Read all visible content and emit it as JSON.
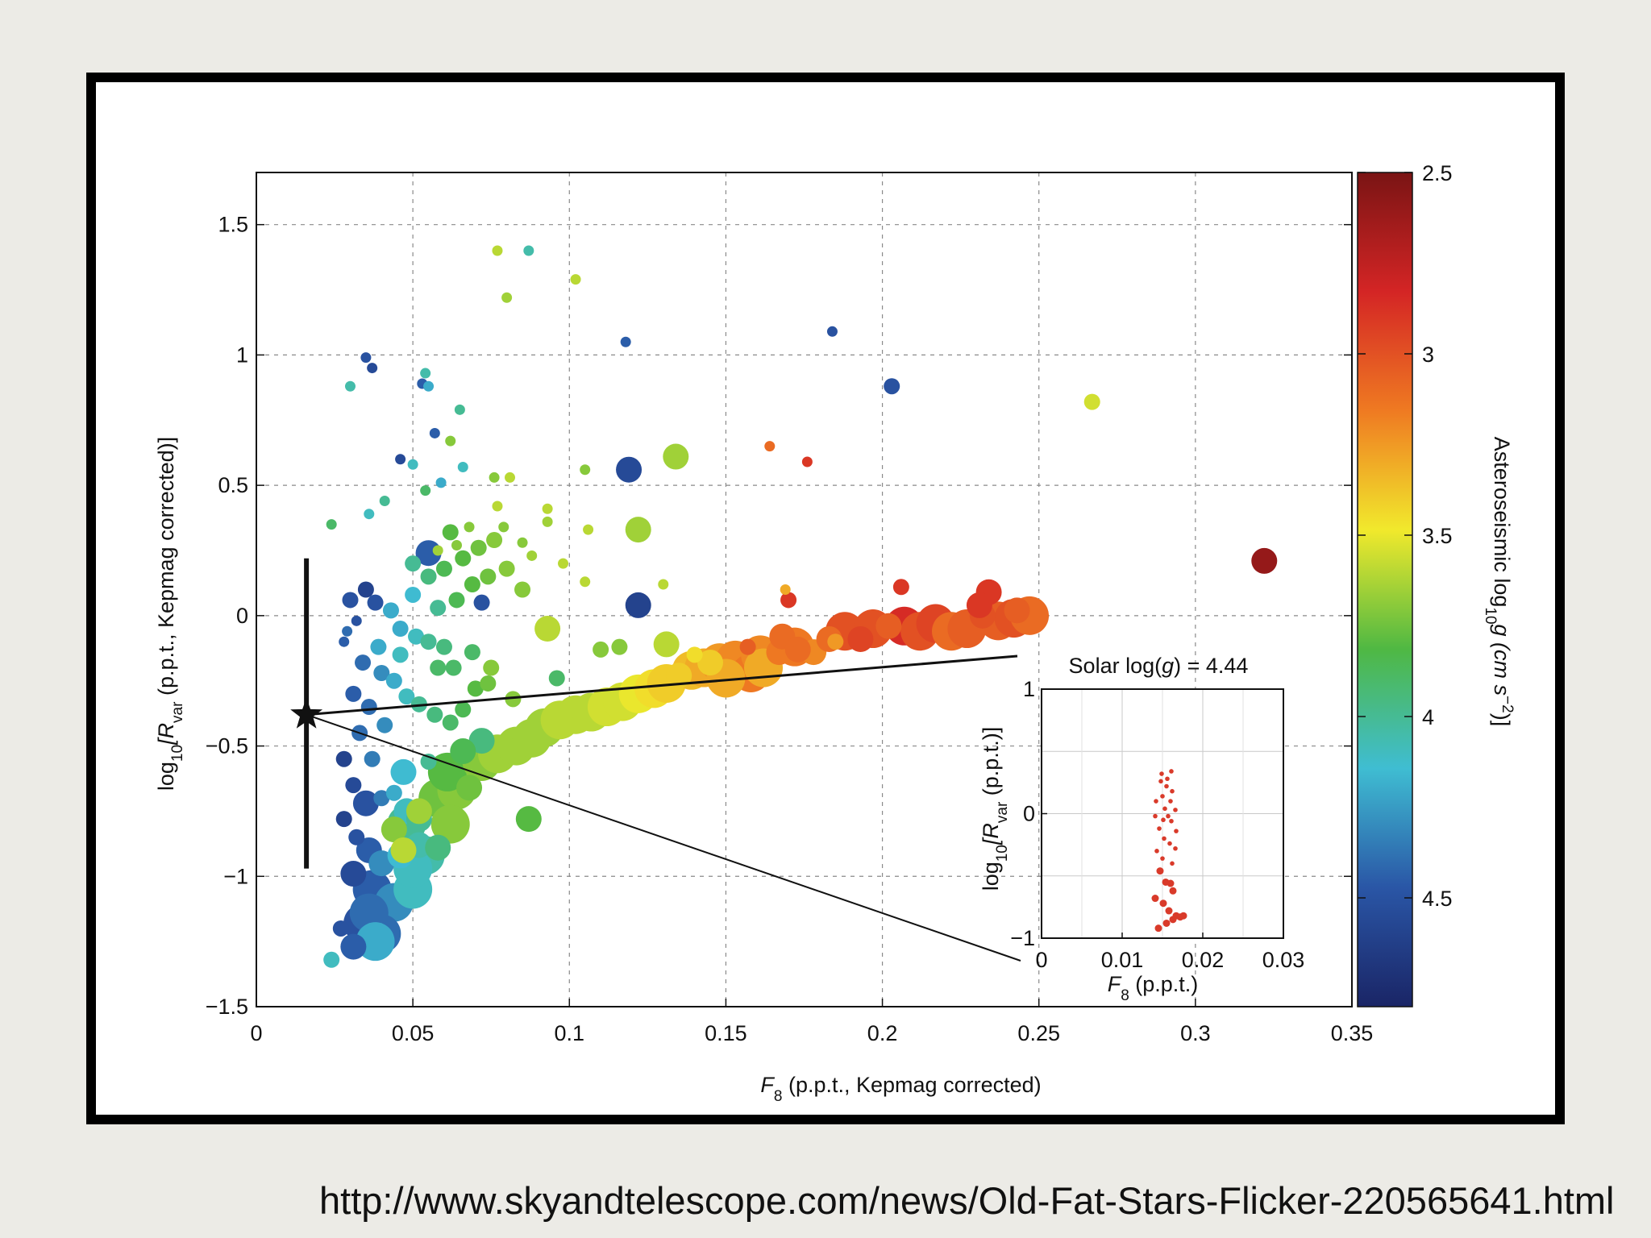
{
  "source": {
    "url": "http://www.skyandtelescope.com/news/Old-Fat-Stars-Flicker-220565641.html"
  },
  "chart_data": {
    "type": "scatter",
    "xlabel": {
      "var": "F",
      "sub": "8",
      "rest": " (p.p.t., Kepmag corrected)"
    },
    "ylabel": {
      "pre": "log",
      "sub1": "10",
      "var": "[R",
      "sub2": "var",
      "rest": "  (p.p.t., Kepmag corrected)]"
    },
    "xlim": [
      0,
      0.35
    ],
    "ylim": [
      -1.5,
      1.7
    ],
    "xticks": [
      "0",
      "0.05",
      "0.1",
      "0.15",
      "0.2",
      "0.25",
      "0.3",
      "0.35"
    ],
    "xtick_values": [
      0,
      0.05,
      0.1,
      0.15,
      0.2,
      0.25,
      0.3,
      0.35
    ],
    "yticks": [
      "−1.5",
      "−1",
      "−0.5",
      "0",
      "0.5",
      "1",
      "1.5"
    ],
    "ytick_values": [
      -1.5,
      -1,
      -0.5,
      0,
      0.5,
      1,
      1.5
    ],
    "grid": true,
    "colorbar": {
      "label": "Asteroseismic  log",
      "label_sub": "10",
      "label_rest": "g  (cm s",
      "label_sup": "−2",
      "label_end": ")]",
      "range": [
        2.5,
        4.8
      ],
      "ticks": [
        "2.5",
        "3",
        "3.5",
        "4",
        "4.5"
      ],
      "tick_values": [
        2.5,
        3,
        3.5,
        4,
        4.5
      ],
      "colors": [
        "#7a1414",
        "#d42525",
        "#ef7a22",
        "#f1e92c",
        "#4fb843",
        "#3fbdd2",
        "#2a56a6",
        "#1a2566"
      ]
    },
    "sun_marker": {
      "x": 0.016,
      "y": -0.38,
      "yerr_low": -0.97,
      "yerr_high": 0.22
    },
    "points_columns": [
      "x",
      "y",
      "logg",
      "size"
    ],
    "points": [
      [
        0.077,
        1.4,
        3.6,
        1
      ],
      [
        0.087,
        1.4,
        4.05,
        1
      ],
      [
        0.08,
        1.22,
        3.65,
        1
      ],
      [
        0.102,
        1.29,
        3.6,
        1
      ],
      [
        0.035,
        0.99,
        4.5,
        1
      ],
      [
        0.037,
        0.95,
        4.55,
        1
      ],
      [
        0.03,
        0.88,
        4.05,
        1
      ],
      [
        0.054,
        0.93,
        4.05,
        1
      ],
      [
        0.053,
        0.89,
        4.45,
        1
      ],
      [
        0.055,
        0.88,
        4.2,
        1
      ],
      [
        0.065,
        0.79,
        4.0,
        1
      ],
      [
        0.057,
        0.7,
        4.45,
        1
      ],
      [
        0.062,
        0.67,
        3.7,
        1
      ],
      [
        0.046,
        0.6,
        4.55,
        1
      ],
      [
        0.05,
        0.58,
        4.1,
        1
      ],
      [
        0.066,
        0.57,
        4.1,
        1
      ],
      [
        0.059,
        0.51,
        4.2,
        1
      ],
      [
        0.041,
        0.44,
        4.0,
        1
      ],
      [
        0.036,
        0.39,
        4.1,
        1
      ],
      [
        0.024,
        0.35,
        3.9,
        1
      ],
      [
        0.054,
        0.48,
        3.9,
        1
      ],
      [
        0.076,
        0.53,
        3.7,
        1
      ],
      [
        0.081,
        0.53,
        3.6,
        1
      ],
      [
        0.105,
        0.56,
        3.7,
        1
      ],
      [
        0.077,
        0.42,
        3.6,
        1
      ],
      [
        0.093,
        0.41,
        3.6,
        1
      ],
      [
        0.093,
        0.36,
        3.65,
        1
      ],
      [
        0.106,
        0.33,
        3.6,
        1
      ],
      [
        0.079,
        0.34,
        3.7,
        1
      ],
      [
        0.068,
        0.34,
        3.7,
        1
      ],
      [
        0.064,
        0.27,
        3.7,
        1
      ],
      [
        0.058,
        0.25,
        3.65,
        1
      ],
      [
        0.088,
        0.23,
        3.65,
        1
      ],
      [
        0.085,
        0.28,
        3.7,
        1
      ],
      [
        0.098,
        0.2,
        3.6,
        1
      ],
      [
        0.105,
        0.13,
        3.6,
        1
      ],
      [
        0.13,
        0.12,
        3.6,
        1
      ],
      [
        0.118,
        1.05,
        4.45,
        1
      ],
      [
        0.184,
        1.09,
        4.5,
        1
      ],
      [
        0.203,
        0.88,
        4.5,
        2
      ],
      [
        0.119,
        0.56,
        4.55,
        3
      ],
      [
        0.134,
        0.61,
        3.65,
        3
      ],
      [
        0.122,
        0.33,
        3.65,
        3
      ],
      [
        0.055,
        0.24,
        4.45,
        3
      ],
      [
        0.164,
        0.65,
        3.1,
        1
      ],
      [
        0.176,
        0.59,
        2.9,
        1
      ],
      [
        0.267,
        0.82,
        3.55,
        2
      ],
      [
        0.322,
        0.21,
        2.6,
        3
      ],
      [
        0.206,
        0.11,
        2.9,
        2
      ],
      [
        0.234,
        0.09,
        2.9,
        3
      ],
      [
        0.17,
        0.06,
        2.9,
        2
      ],
      [
        0.169,
        0.1,
        3.3,
        1
      ],
      [
        0.122,
        0.04,
        4.6,
        3
      ],
      [
        0.072,
        0.05,
        4.5,
        2
      ],
      [
        0.087,
        -0.78,
        3.8,
        3
      ],
      [
        0.11,
        -0.13,
        3.7,
        2
      ],
      [
        0.116,
        -0.12,
        3.7,
        2
      ],
      [
        0.131,
        -0.11,
        3.6,
        3
      ],
      [
        0.096,
        -0.24,
        3.9,
        2
      ],
      [
        0.082,
        -0.32,
        3.7,
        2
      ],
      [
        0.075,
        -0.2,
        3.7,
        2
      ],
      [
        0.069,
        -0.14,
        3.9,
        2
      ],
      [
        0.072,
        -0.48,
        3.95,
        3
      ],
      [
        0.093,
        -0.05,
        3.6,
        3
      ],
      [
        0.035,
        0.1,
        4.6,
        2
      ],
      [
        0.038,
        0.05,
        4.5,
        2
      ],
      [
        0.043,
        0.02,
        4.2,
        2
      ],
      [
        0.046,
        -0.05,
        4.2,
        2
      ],
      [
        0.051,
        -0.08,
        4.1,
        2
      ],
      [
        0.055,
        -0.1,
        4.0,
        2
      ],
      [
        0.06,
        -0.12,
        3.95,
        2
      ],
      [
        0.063,
        -0.2,
        3.9,
        2
      ],
      [
        0.032,
        -0.02,
        4.5,
        1
      ],
      [
        0.028,
        -0.1,
        4.45,
        1
      ],
      [
        0.034,
        -0.18,
        4.4,
        2
      ],
      [
        0.04,
        -0.22,
        4.3,
        2
      ],
      [
        0.044,
        -0.25,
        4.2,
        2
      ],
      [
        0.031,
        -0.3,
        4.45,
        2
      ],
      [
        0.036,
        -0.35,
        4.4,
        2
      ],
      [
        0.041,
        -0.42,
        4.3,
        2
      ],
      [
        0.048,
        -0.31,
        4.1,
        2
      ],
      [
        0.052,
        -0.34,
        4.0,
        2
      ],
      [
        0.057,
        -0.38,
        3.95,
        2
      ],
      [
        0.062,
        -0.41,
        3.9,
        2
      ],
      [
        0.066,
        -0.36,
        3.85,
        2
      ],
      [
        0.07,
        -0.28,
        3.8,
        2
      ],
      [
        0.074,
        -0.26,
        3.75,
        2
      ],
      [
        0.058,
        -0.2,
        3.9,
        2
      ],
      [
        0.046,
        -0.15,
        4.1,
        2
      ],
      [
        0.039,
        -0.12,
        4.2,
        2
      ],
      [
        0.05,
        0.08,
        4.15,
        2
      ],
      [
        0.058,
        0.03,
        4.0,
        2
      ],
      [
        0.064,
        0.06,
        3.85,
        2
      ],
      [
        0.069,
        0.12,
        3.8,
        2
      ],
      [
        0.074,
        0.15,
        3.75,
        2
      ],
      [
        0.08,
        0.18,
        3.7,
        2
      ],
      [
        0.085,
        0.1,
        3.7,
        2
      ],
      [
        0.06,
        0.18,
        3.85,
        2
      ],
      [
        0.066,
        0.22,
        3.8,
        2
      ],
      [
        0.071,
        0.26,
        3.75,
        2
      ],
      [
        0.076,
        0.29,
        3.7,
        2
      ],
      [
        0.062,
        0.32,
        3.8,
        2
      ],
      [
        0.055,
        0.15,
        3.95,
        2
      ],
      [
        0.05,
        0.2,
        4.0,
        2
      ],
      [
        0.03,
        0.06,
        4.5,
        2
      ],
      [
        0.029,
        -0.06,
        4.4,
        1
      ],
      [
        0.033,
        -0.45,
        4.4,
        2
      ],
      [
        0.037,
        -0.55,
        4.35,
        2
      ],
      [
        0.028,
        -0.55,
        4.6,
        2
      ],
      [
        0.031,
        -0.65,
        4.55,
        2
      ],
      [
        0.035,
        -0.72,
        4.5,
        3
      ],
      [
        0.04,
        -0.7,
        4.35,
        2
      ],
      [
        0.044,
        -0.68,
        4.2,
        2
      ],
      [
        0.048,
        -0.75,
        4.1,
        3
      ],
      [
        0.052,
        -0.78,
        4.0,
        3
      ],
      [
        0.047,
        -0.6,
        4.15,
        3
      ],
      [
        0.055,
        -0.56,
        4.0,
        2
      ],
      [
        0.028,
        -0.78,
        4.6,
        2
      ],
      [
        0.032,
        -0.85,
        4.5,
        2
      ],
      [
        0.036,
        -0.9,
        4.45,
        3
      ],
      [
        0.04,
        -0.95,
        4.3,
        3
      ],
      [
        0.046,
        -0.92,
        4.15,
        3
      ],
      [
        0.052,
        -0.88,
        4.05,
        3
      ],
      [
        0.031,
        -0.99,
        4.55,
        3
      ],
      [
        0.037,
        -1.05,
        4.45,
        4
      ],
      [
        0.044,
        -1.1,
        4.3,
        4
      ],
      [
        0.05,
        -1.05,
        4.1,
        4
      ],
      [
        0.034,
        -1.18,
        4.5,
        4
      ],
      [
        0.04,
        -1.22,
        4.4,
        4
      ],
      [
        0.036,
        -1.14,
        4.4,
        4
      ],
      [
        0.031,
        -1.27,
        4.45,
        3
      ],
      [
        0.024,
        -1.32,
        4.1,
        2
      ],
      [
        0.027,
        -1.2,
        4.5,
        2
      ],
      [
        0.038,
        -1.25,
        4.2,
        4
      ],
      [
        0.048,
        -0.8,
        4.0,
        4
      ],
      [
        0.044,
        -0.82,
        3.7,
        3
      ],
      [
        0.047,
        -0.9,
        3.6,
        3
      ],
      [
        0.052,
        -0.75,
        3.65,
        3
      ],
      [
        0.058,
        -0.7,
        3.75,
        4
      ],
      [
        0.064,
        -0.67,
        3.7,
        4
      ],
      [
        0.061,
        -0.6,
        3.8,
        4
      ],
      [
        0.066,
        -0.52,
        3.85,
        3
      ],
      [
        0.068,
        -0.66,
        3.75,
        3
      ],
      [
        0.062,
        -0.8,
        3.7,
        4
      ],
      [
        0.058,
        -0.89,
        3.95,
        3
      ],
      [
        0.054,
        -0.92,
        4.05,
        4
      ],
      [
        0.05,
        -0.97,
        4.1,
        4
      ],
      [
        0.072,
        -0.56,
        3.7,
        4
      ],
      [
        0.077,
        -0.53,
        3.65,
        4
      ],
      [
        0.083,
        -0.5,
        3.65,
        4
      ],
      [
        0.088,
        -0.47,
        3.65,
        4
      ],
      [
        0.092,
        -0.43,
        3.65,
        4
      ],
      [
        0.097,
        -0.4,
        3.6,
        4
      ],
      [
        0.102,
        -0.38,
        3.6,
        4
      ],
      [
        0.107,
        -0.37,
        3.6,
        4
      ],
      [
        0.112,
        -0.35,
        3.55,
        4
      ],
      [
        0.117,
        -0.33,
        3.55,
        4
      ],
      [
        0.122,
        -0.3,
        3.5,
        4
      ],
      [
        0.127,
        -0.28,
        3.45,
        4
      ],
      [
        0.131,
        -0.26,
        3.4,
        4
      ],
      [
        0.135,
        -0.23,
        3.4,
        3
      ],
      [
        0.139,
        -0.21,
        3.35,
        4
      ],
      [
        0.143,
        -0.2,
        3.3,
        4
      ],
      [
        0.148,
        -0.18,
        3.25,
        4
      ],
      [
        0.153,
        -0.17,
        3.2,
        4
      ],
      [
        0.158,
        -0.22,
        3.15,
        4
      ],
      [
        0.161,
        -0.15,
        3.2,
        4
      ],
      [
        0.167,
        -0.14,
        3.15,
        3
      ],
      [
        0.172,
        -0.12,
        3.15,
        4
      ],
      [
        0.178,
        -0.14,
        3.2,
        3
      ],
      [
        0.183,
        -0.09,
        3.1,
        3
      ],
      [
        0.188,
        -0.06,
        3.0,
        4
      ],
      [
        0.193,
        -0.09,
        2.95,
        3
      ],
      [
        0.197,
        -0.05,
        3.0,
        4
      ],
      [
        0.202,
        -0.04,
        3.05,
        3
      ],
      [
        0.207,
        -0.04,
        2.85,
        4
      ],
      [
        0.212,
        -0.06,
        3.0,
        4
      ],
      [
        0.217,
        -0.03,
        2.95,
        4
      ],
      [
        0.222,
        -0.06,
        3.1,
        4
      ],
      [
        0.227,
        -0.05,
        3.05,
        4
      ],
      [
        0.232,
        0.0,
        3.0,
        3
      ],
      [
        0.237,
        -0.02,
        3.05,
        4
      ],
      [
        0.242,
        -0.01,
        3.0,
        4
      ],
      [
        0.247,
        0.0,
        3.1,
        4
      ],
      [
        0.243,
        0.02,
        3.05,
        3
      ],
      [
        0.231,
        0.04,
        2.9,
        3
      ],
      [
        0.185,
        -0.1,
        3.25,
        2
      ],
      [
        0.168,
        -0.08,
        3.1,
        3
      ],
      [
        0.173,
        -0.13,
        3.1,
        3
      ],
      [
        0.157,
        -0.12,
        3.05,
        2
      ],
      [
        0.162,
        -0.2,
        3.3,
        4
      ],
      [
        0.15,
        -0.24,
        3.3,
        4
      ],
      [
        0.145,
        -0.18,
        3.4,
        3
      ],
      [
        0.14,
        -0.15,
        3.45,
        2
      ]
    ],
    "inset": {
      "title": {
        "pre": "Solar log(",
        "var": "g",
        "post": ") = 4.44"
      },
      "xlabel": {
        "var": "F",
        "sub": "8",
        "rest": " (p.p.t.)"
      },
      "ylabel": {
        "pre": "log",
        "sub1": "10",
        "var": "[R",
        "sub2": "var",
        "rest": " (p.p.t.)]"
      },
      "xlim": [
        0,
        0.03
      ],
      "ylim": [
        -1,
        1
      ],
      "xticks": [
        "0",
        "0.01",
        "0.02",
        "0.03"
      ],
      "xtick_values": [
        0,
        0.01,
        0.02,
        0.03
      ],
      "yticks": [
        "−1",
        "0",
        "1"
      ],
      "ytick_values": [
        -1,
        0,
        1
      ],
      "color": "#d93a2a",
      "points": [
        [
          0.0149,
          0.32
        ],
        [
          0.0161,
          0.34
        ],
        [
          0.0148,
          0.26
        ],
        [
          0.0155,
          0.22
        ],
        [
          0.0162,
          0.18
        ],
        [
          0.0142,
          0.1
        ],
        [
          0.016,
          0.1
        ],
        [
          0.0153,
          0.04
        ],
        [
          0.0166,
          0.03
        ],
        [
          0.0141,
          -0.02
        ],
        [
          0.0151,
          -0.05
        ],
        [
          0.0161,
          -0.06
        ],
        [
          0.0146,
          -0.12
        ],
        [
          0.0167,
          -0.14
        ],
        [
          0.0152,
          -0.2
        ],
        [
          0.0159,
          -0.24
        ],
        [
          0.0143,
          -0.3
        ],
        [
          0.015,
          -0.36
        ],
        [
          0.0162,
          -0.4
        ],
        [
          0.0147,
          -0.46
        ],
        [
          0.0154,
          -0.55
        ],
        [
          0.0163,
          -0.62
        ],
        [
          0.0141,
          -0.68
        ],
        [
          0.0151,
          -0.72
        ],
        [
          0.0158,
          -0.78
        ],
        [
          0.0167,
          -0.82
        ],
        [
          0.0172,
          -0.83
        ],
        [
          0.0176,
          -0.82
        ],
        [
          0.0163,
          -0.85
        ],
        [
          0.0145,
          -0.92
        ],
        [
          0.0155,
          -0.88
        ],
        [
          0.016,
          -0.56
        ],
        [
          0.0166,
          -0.28
        ],
        [
          0.0157,
          -0.02
        ],
        [
          0.015,
          0.14
        ],
        [
          0.0156,
          0.28
        ]
      ]
    }
  }
}
